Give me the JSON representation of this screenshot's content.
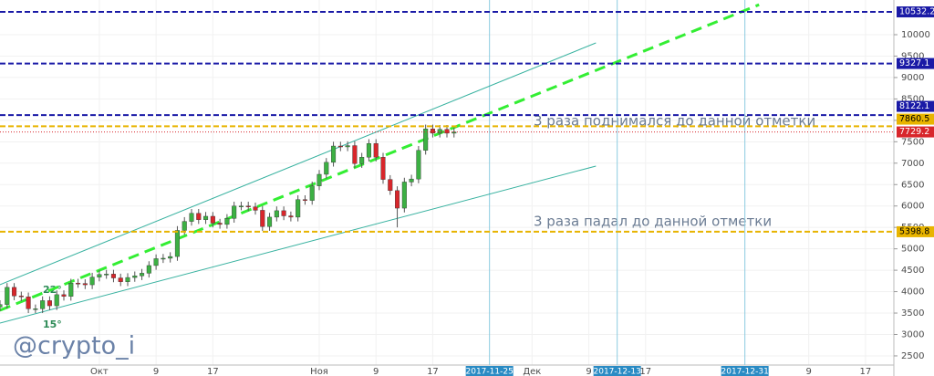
{
  "chart_data": {
    "type": "candlestick",
    "x": [
      "2017-09-17",
      "2017-09-18",
      "2017-09-19",
      "2017-09-20",
      "2017-09-21",
      "2017-09-22",
      "2017-09-23",
      "2017-09-24",
      "2017-09-25",
      "2017-09-26",
      "2017-09-27",
      "2017-09-28",
      "2017-09-29",
      "2017-09-30",
      "2017-10-01",
      "2017-10-02",
      "2017-10-03",
      "2017-10-04",
      "2017-10-05",
      "2017-10-06",
      "2017-10-07",
      "2017-10-08",
      "2017-10-09",
      "2017-10-10",
      "2017-10-11",
      "2017-10-12",
      "2017-10-13",
      "2017-10-14",
      "2017-10-15",
      "2017-10-16",
      "2017-10-17",
      "2017-10-18",
      "2017-10-19",
      "2017-10-20",
      "2017-10-21",
      "2017-10-22",
      "2017-10-23",
      "2017-10-24",
      "2017-10-25",
      "2017-10-26",
      "2017-10-27",
      "2017-10-28",
      "2017-10-29",
      "2017-10-30",
      "2017-10-31",
      "2017-11-01",
      "2017-11-02",
      "2017-11-03",
      "2017-11-04",
      "2017-11-05",
      "2017-11-06",
      "2017-11-07",
      "2017-11-08",
      "2017-11-09",
      "2017-11-10",
      "2017-11-11",
      "2017-11-12",
      "2017-11-13",
      "2017-11-14",
      "2017-11-15",
      "2017-11-16",
      "2017-11-17",
      "2017-11-18",
      "2017-11-19",
      "2017-11-20"
    ],
    "open": [
      3640,
      3700,
      4100,
      3900,
      3880,
      3600,
      3600,
      3790,
      3670,
      3930,
      3890,
      4200,
      4190,
      4160,
      4340,
      4400,
      4410,
      4320,
      4230,
      4330,
      4370,
      4430,
      4610,
      4770,
      4780,
      4820,
      5430,
      5640,
      5830,
      5680,
      5760,
      5600,
      5570,
      5710,
      6000,
      6000,
      5980,
      5900,
      5520,
      5740,
      5890,
      5770,
      5740,
      6150,
      6130,
      6470,
      6740,
      7020,
      7400,
      7380,
      7410,
      6990,
      7140,
      7460,
      7140,
      6620,
      6360,
      5950,
      6560,
      6630,
      7300,
      7800,
      7700,
      7790,
      7700
    ],
    "high": [
      3800,
      4200,
      4200,
      4000,
      3980,
      3700,
      3890,
      3890,
      4030,
      4030,
      4300,
      4300,
      4290,
      4440,
      4500,
      4510,
      4510,
      4420,
      4430,
      4470,
      4530,
      4710,
      4870,
      4880,
      4920,
      5530,
      5740,
      5930,
      5930,
      5860,
      5860,
      5700,
      5810,
      6100,
      6100,
      6100,
      6080,
      6000,
      5840,
      5990,
      5990,
      5870,
      6250,
      6250,
      6570,
      6840,
      7120,
      7500,
      7500,
      7510,
      7510,
      7240,
      7560,
      7560,
      7240,
      6720,
      6460,
      6660,
      6730,
      7400,
      7900,
      7900,
      7890,
      7890,
      7829
    ],
    "low": [
      3540,
      3600,
      3800,
      3780,
      3500,
      3500,
      3500,
      3570,
      3570,
      3790,
      3790,
      4090,
      4060,
      4060,
      4240,
      4300,
      4220,
      4130,
      4130,
      4230,
      4270,
      4330,
      4510,
      4670,
      4680,
      4720,
      5330,
      5540,
      5580,
      5580,
      5500,
      5470,
      5470,
      5610,
      5900,
      5880,
      5800,
      5420,
      5420,
      5640,
      5670,
      5640,
      5640,
      6030,
      6030,
      6370,
      6640,
      6920,
      7280,
      7280,
      6890,
      6890,
      7040,
      7040,
      6520,
      6260,
      5500,
      5850,
      6460,
      6530,
      7200,
      7600,
      7600,
      7600,
      7600
    ],
    "close": [
      3700,
      4100,
      3900,
      3880,
      3600,
      3600,
      3790,
      3670,
      3930,
      3890,
      4200,
      4190,
      4160,
      4340,
      4400,
      4410,
      4320,
      4230,
      4330,
      4370,
      4430,
      4610,
      4770,
      4780,
      4820,
      5430,
      5640,
      5830,
      5680,
      5760,
      5600,
      5570,
      5710,
      6000,
      6000,
      5980,
      5900,
      5520,
      5740,
      5890,
      5770,
      5740,
      6150,
      6130,
      6470,
      6740,
      7020,
      7400,
      7380,
      7410,
      6990,
      7140,
      7460,
      7140,
      6620,
      6360,
      5950,
      6560,
      6630,
      7300,
      7800,
      7700,
      7790,
      7700,
      7729
    ],
    "up_color": "#3cb043",
    "down_color": "#d8262b",
    "xlim": [
      "2017-09-17",
      "2018-01-21"
    ],
    "ylim": [
      2286,
      10810
    ],
    "yticks": [
      2500,
      3000,
      3500,
      4000,
      4500,
      5000,
      5500,
      6000,
      6500,
      7000,
      7500,
      8000,
      8500,
      9000,
      9500,
      10000
    ],
    "xticks": [
      {
        "value": "2017-10-01",
        "label": "Окт"
      },
      {
        "value": "2017-10-09",
        "label": "9"
      },
      {
        "value": "2017-10-17",
        "label": "17"
      },
      {
        "value": "2017-11-01",
        "label": "Ноя"
      },
      {
        "value": "2017-11-09",
        "label": "9"
      },
      {
        "value": "2017-11-17",
        "label": "17"
      },
      {
        "value": "2017-12-01",
        "label": "Дек"
      },
      {
        "value": "2017-12-09",
        "label": "9"
      },
      {
        "value": "2017-12-17",
        "label": "17"
      },
      {
        "value": "2018-01-09",
        "label": "9"
      },
      {
        "value": "2018-01-17",
        "label": "17"
      }
    ],
    "grid": true,
    "levels": [
      {
        "value": 10532.2,
        "color": "#1a1aa6"
      },
      {
        "value": 9327.1,
        "color": "#1a1aa6"
      },
      {
        "value": 8122.1,
        "color": "#1a1aa6"
      },
      {
        "value": 7860.5,
        "color": "#e8b400"
      },
      {
        "value": 7729.2,
        "color": "#d8262b"
      },
      {
        "value": 5398.8,
        "color": "#e8b400"
      }
    ],
    "vlines": [
      "2017-11-25",
      "2017-12-13",
      "2017-12-31"
    ],
    "trendlines": [
      {
        "x": [
          "2017-09-17",
          "2017-12-10"
        ],
        "values": [
          4162,
          9808
        ],
        "color": "#38b2a0"
      },
      {
        "x": [
          "2017-09-17",
          "2017-12-10"
        ],
        "values": [
          3267,
          6932
        ],
        "color": "#38b2a0"
      },
      {
        "x": [
          "2017-09-17",
          "2018-01-02"
        ],
        "values": [
          3565,
          10700
        ],
        "color": "#33ee33",
        "dashed": true
      }
    ],
    "annotations": [
      "3 раза поднимался до данной отметки",
      "3 раза падал до данной отметки",
      "22°",
      "15°",
      "@crypto_i"
    ]
  }
}
